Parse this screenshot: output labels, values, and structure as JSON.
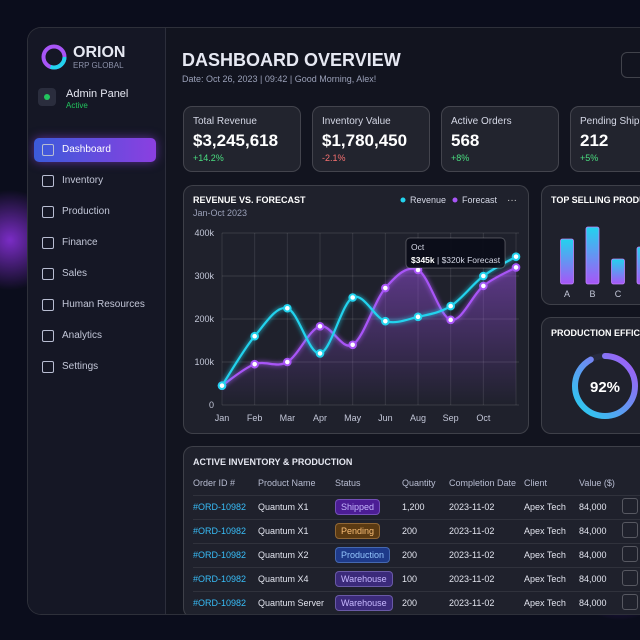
{
  "sidebar": {
    "brand": "ORION",
    "tagline": "ERP GLOBAL",
    "user": "Admin Panel",
    "status": "Active",
    "nav": [
      "Dashboard",
      "Inventory",
      "Production",
      "Finance",
      "Sales",
      "Human Resources",
      "Analytics",
      "Settings"
    ]
  },
  "header": {
    "title": "DASHBOARD OVERVIEW",
    "subtitle": "Date: Oct 26, 2023 | 09:42 | Good Morning, Alex!"
  },
  "kpis": [
    {
      "label": "Total Revenue",
      "value": "$3,245,618",
      "change": "+14.2%"
    },
    {
      "label": "Inventory Value",
      "value": "$1,780,450",
      "change": "-2.1%"
    },
    {
      "label": "Active Orders",
      "value": "568",
      "change": "+8%"
    },
    {
      "label": "Pending Shipments",
      "value": "212",
      "change": "+5%"
    }
  ],
  "chart_data": [
    {
      "type": "line",
      "title": "REVENUE VS. FORECAST",
      "subtitle": "Jan-Oct 2023",
      "categories": [
        "Jan",
        "Feb",
        "Mar",
        "Apr",
        "May",
        "Jun",
        "Aug",
        "Sep",
        "Oct",
        null
      ],
      "series": [
        {
          "name": "Revenue",
          "color": "#22d3ee",
          "values": [
            45,
            160,
            225,
            120,
            250,
            195,
            205,
            230,
            300,
            345
          ]
        },
        {
          "name": "Forecast",
          "color": "#a855f7",
          "values": [
            45,
            95,
            100,
            183,
            140,
            272,
            314,
            198,
            277,
            320
          ]
        }
      ],
      "ylim": [
        0,
        400
      ],
      "yticks": [
        0,
        {
          "value": 100,
          "label": "100k"
        },
        {
          "value": 200,
          "label": "200k"
        },
        {
          "value": 300,
          "label": "300k"
        },
        {
          "value": 400,
          "label": "400k"
        }
      ],
      "grid": true,
      "annotation": {
        "title": "Oct",
        "value": "$345k",
        "detail": "| $320k Forecast"
      }
    },
    {
      "type": "bar",
      "title": "TOP SELLING PRODUCTS",
      "categories": [
        "A",
        "B",
        "C",
        null
      ],
      "values": [
        45,
        57,
        25,
        37
      ],
      "color": "#a855f7",
      "ylim": [
        0,
        60
      ]
    },
    {
      "type": "gauge",
      "title": "PRODUCTION EFFICIENCY",
      "values": [
        92
      ],
      "value_labels": [
        "92%"
      ],
      "ylim": [
        0,
        100
      ]
    }
  ],
  "table": {
    "title": "ACTIVE INVENTORY & PRODUCTION",
    "columns": [
      "Order ID #",
      "Product Name",
      "Status",
      "Quantity",
      "Completion Date",
      "Client",
      "Value ($)"
    ],
    "rows": [
      [
        "#ORD-10982",
        "Quantum X1",
        "Shipped",
        "1,200",
        "2023-11-02",
        "Apex Tech",
        "84,000"
      ],
      [
        "#ORD-10982",
        "Quantum X1",
        "Pending",
        "200",
        "2023-11-02",
        "Apex Tech",
        "84,000"
      ],
      [
        "#ORD-10982",
        "Quantum X2",
        "Production",
        "200",
        "2023-11-02",
        "Apex Tech",
        "84,000"
      ],
      [
        "#ORD-10982",
        "Quantum X4",
        "Warehouse",
        "100",
        "2023-11-02",
        "Apex Tech",
        "84,000"
      ],
      [
        "#ORD-10982",
        "Quantum Server",
        "Warehouse",
        "200",
        "2023-11-02",
        "Apex Tech",
        "84,000"
      ]
    ]
  }
}
